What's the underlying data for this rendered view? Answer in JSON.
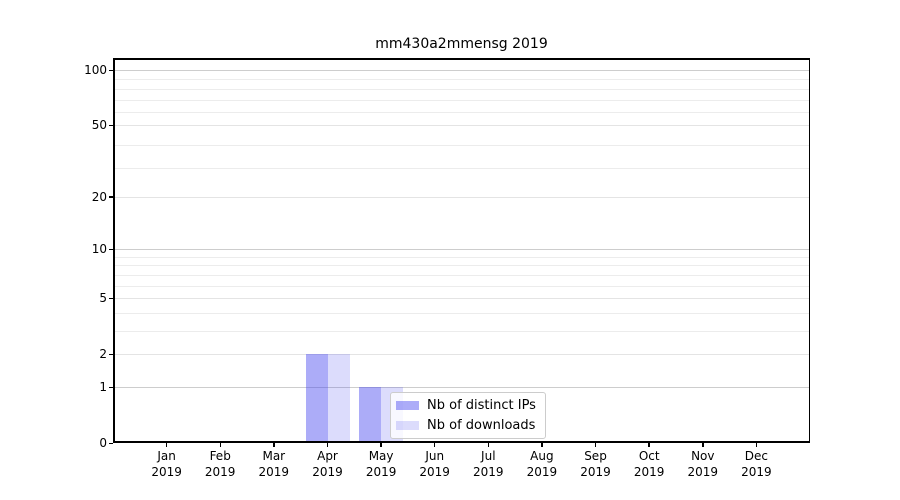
{
  "title": "mm430a2mmensg 2019",
  "chart_data": {
    "type": "bar",
    "title": "mm430a2mmensg 2019",
    "categories": [
      "Jan",
      "Feb",
      "Mar",
      "Apr",
      "May",
      "Jun",
      "Jul",
      "Aug",
      "Sep",
      "Oct",
      "Nov",
      "Dec"
    ],
    "year": "2019",
    "series": [
      {
        "name": "Nb of distinct IPs",
        "color": "rgba(70,70,240,0.45)",
        "values": [
          0,
          0,
          0,
          2,
          1,
          0,
          0,
          0,
          0,
          0,
          0,
          0
        ]
      },
      {
        "name": "Nb of downloads",
        "color": "rgba(70,70,240,0.19)",
        "values": [
          0,
          0,
          0,
          2,
          1,
          0,
          0,
          0,
          0,
          0,
          0,
          0
        ]
      }
    ],
    "yscale": "log10(1+x)",
    "ylim": [
      0,
      100
    ],
    "yticks_labeled": [
      0,
      1,
      2,
      5,
      10,
      20,
      50,
      100
    ],
    "yticks_major_grid": [
      1,
      10,
      100
    ],
    "yticks_mid_grid": [
      2,
      5,
      20,
      50
    ],
    "yticks_minor_grid": [
      3,
      4,
      6,
      7,
      8,
      9,
      29,
      39,
      59,
      69,
      79,
      89
    ],
    "grid": "on",
    "legend_position": "center",
    "legend_entries": [
      "Nb of distinct IPs",
      "Nb of downloads"
    ]
  }
}
